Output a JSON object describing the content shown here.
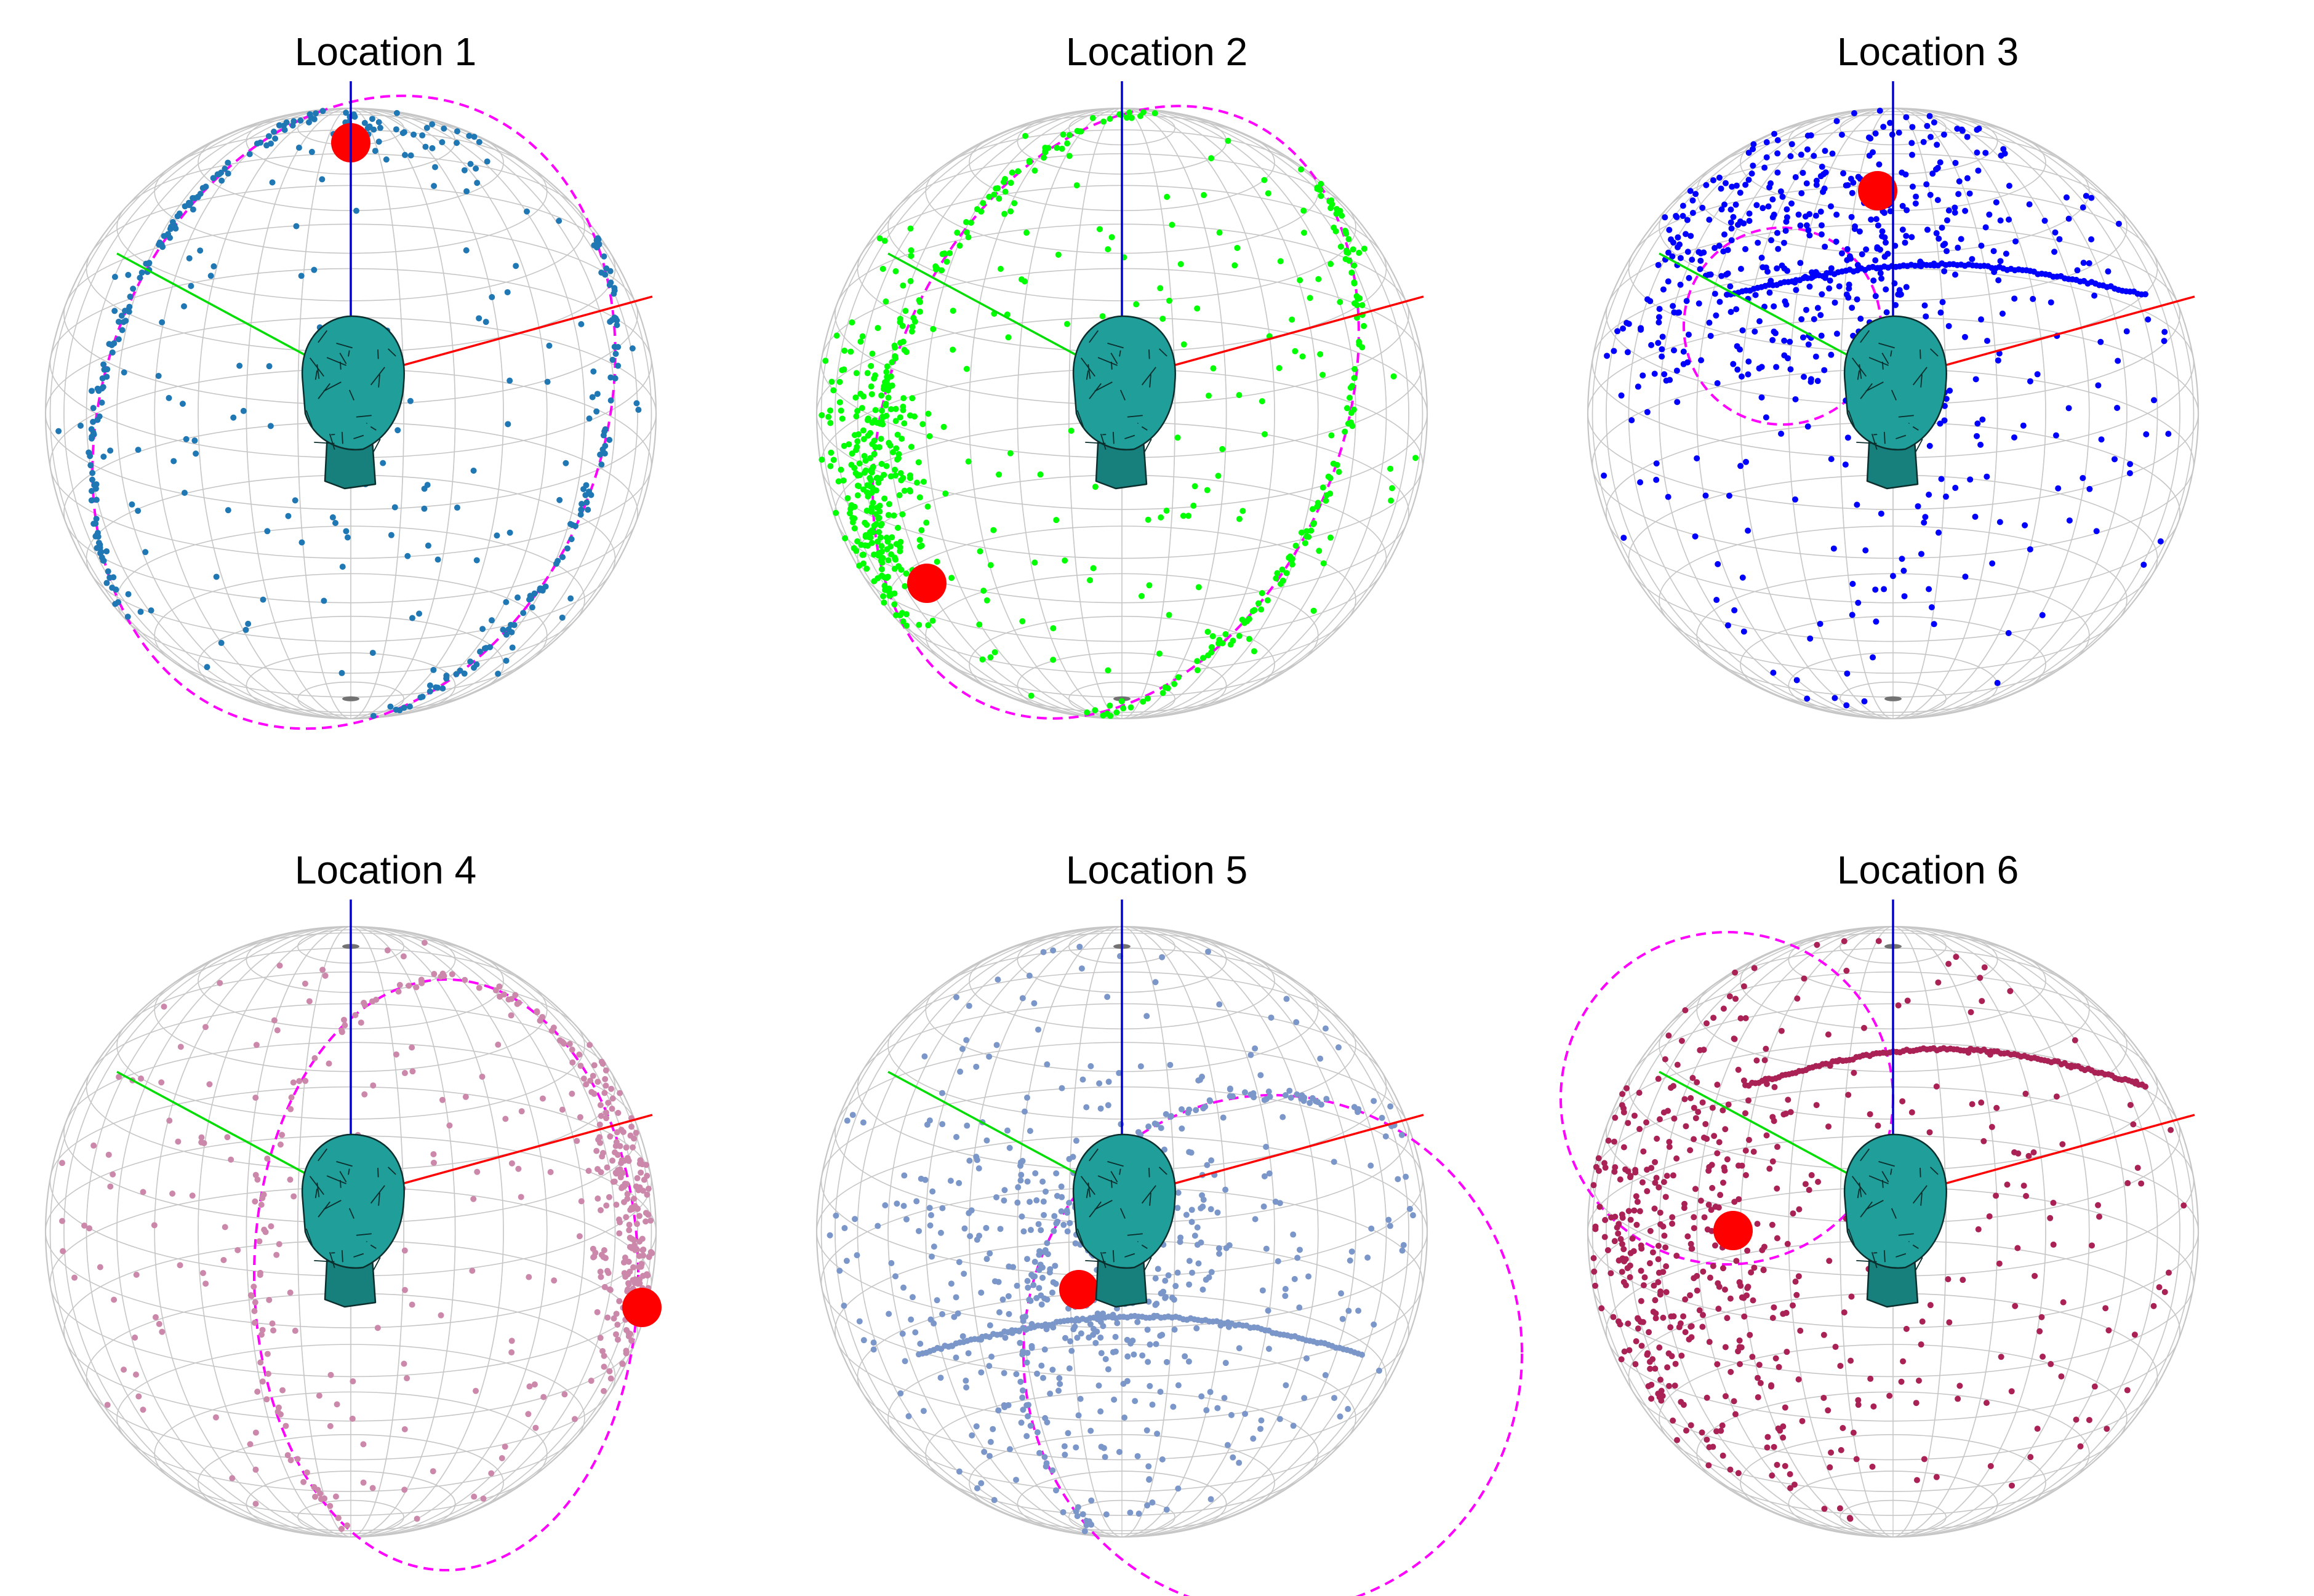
{
  "panels": [
    {
      "title": "Location 1",
      "dot_color": "#1f77b4",
      "pattern": "ring-tilted"
    },
    {
      "title": "Location 2",
      "dot_color": "#00ff00",
      "pattern": "ring-steep"
    },
    {
      "title": "Location 3",
      "dot_color": "#0000ff",
      "pattern": "cap-upper-left"
    },
    {
      "title": "Location 4",
      "dot_color": "#cc88aa",
      "pattern": "ring-right"
    },
    {
      "title": "Location 5",
      "dot_color": "#7b96c8",
      "pattern": "ring-lower"
    },
    {
      "title": "Location 6",
      "dot_color": "#aa2255",
      "pattern": "cap-left"
    }
  ],
  "colors": {
    "grid_line": "#b4b4b4",
    "axis_x": "#ff0000",
    "axis_y": "#00dd00",
    "axis_z": "#0000cc",
    "ring": "#ff00ff",
    "source_marker": "#ff0000",
    "head_fill": "#1f9e9a",
    "head_edge": "#0b2e2d"
  },
  "icons": {
    "head": "head-mesh-icon",
    "source": "source-marker-icon"
  }
}
